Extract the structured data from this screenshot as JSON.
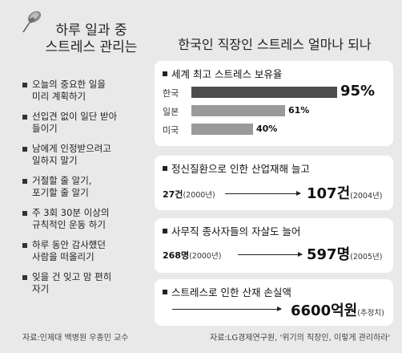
{
  "left_panel": {
    "title_line1": "하루 일과 중",
    "title_line2": "스트레스 관리는",
    "tips": [
      {
        "line1": "오늘의 중요한 일을",
        "line2": "미리 계획하기"
      },
      {
        "line1": "선입견 없이 일단 받아",
        "line2": "들이기"
      },
      {
        "line1": "남에게 인정받으려고",
        "line2": "일하지 말기"
      },
      {
        "line1": "거절할 줄 알기,",
        "line2": "포기할 줄 알기"
      },
      {
        "line1": "주 3회 30분 이상의",
        "line2": "규칙적인 운동 하기"
      },
      {
        "line1": "하루 동안 감사했던",
        "line2": "사람을 떠올리기"
      },
      {
        "line1": "잊을 건 잊고 맘 편히",
        "line2": "자기"
      }
    ],
    "source": "자료:인제대 백병원 우종민 교수"
  },
  "main_title": "한국인 직장인 스트레스 얼마나 되나",
  "chart_data": {
    "type": "bar",
    "title": "세계 최고 스트레스 보유율",
    "categories": [
      "한국",
      "일본",
      "미국"
    ],
    "values": [
      95,
      61,
      40
    ],
    "value_labels": [
      "95%",
      "61%",
      "40%"
    ],
    "unit": "%",
    "colors": [
      "#4d4d4d",
      "#9a9a9a",
      "#9a9a9a"
    ],
    "xlim": [
      0,
      100
    ]
  },
  "stats": [
    {
      "title": "정신질환으로 인한 산업재해 늘고",
      "from_value": "27건",
      "from_year": "(2000년)",
      "to_value": "107건",
      "to_year": "(2004년)"
    },
    {
      "title": "사무직 종사자들의 자살도 늘어",
      "from_value": "268명",
      "from_year": "(2000년)",
      "to_value": "597명",
      "to_year": "(2005년)"
    },
    {
      "title": "스트레스로 인한 산재 손실액",
      "from_value": "",
      "from_year": "",
      "to_value": "6600억원",
      "to_year": "(추정치)"
    }
  ],
  "source_right": "자료:LG경제연구원, '위기의 직장인, 이렇게 관리하라'"
}
